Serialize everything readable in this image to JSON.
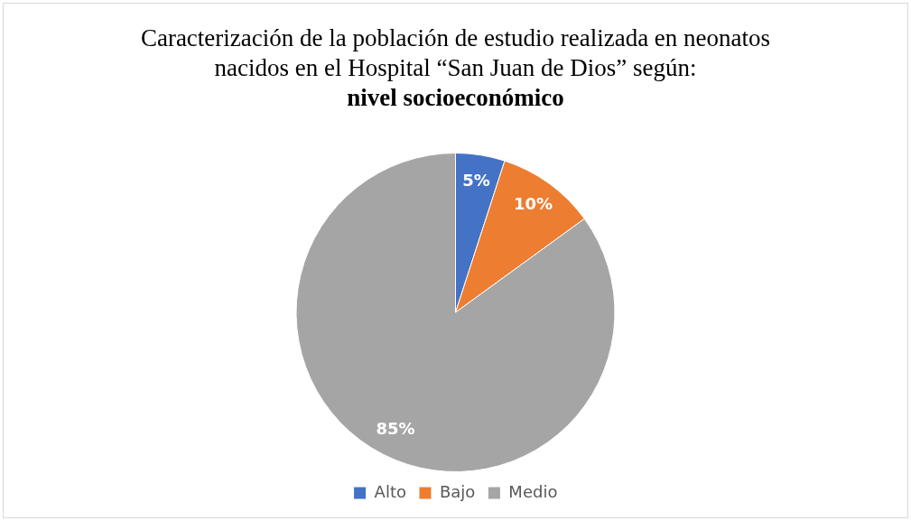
{
  "chart_data": {
    "type": "pie",
    "title": "Caracterización de la población de estudio realizada en neonatos nacidos en el Hospital “San Juan de Dios” según:",
    "subtitle": "nivel socioeconómico",
    "categories": [
      "Alto",
      "Bajo",
      "Medio"
    ],
    "values": [
      5,
      10,
      85
    ],
    "colors": [
      "#4472c4",
      "#ed7d31",
      "#a5a5a5"
    ],
    "value_labels": [
      "5%",
      "10%",
      "85%"
    ],
    "legend": "bottom"
  }
}
